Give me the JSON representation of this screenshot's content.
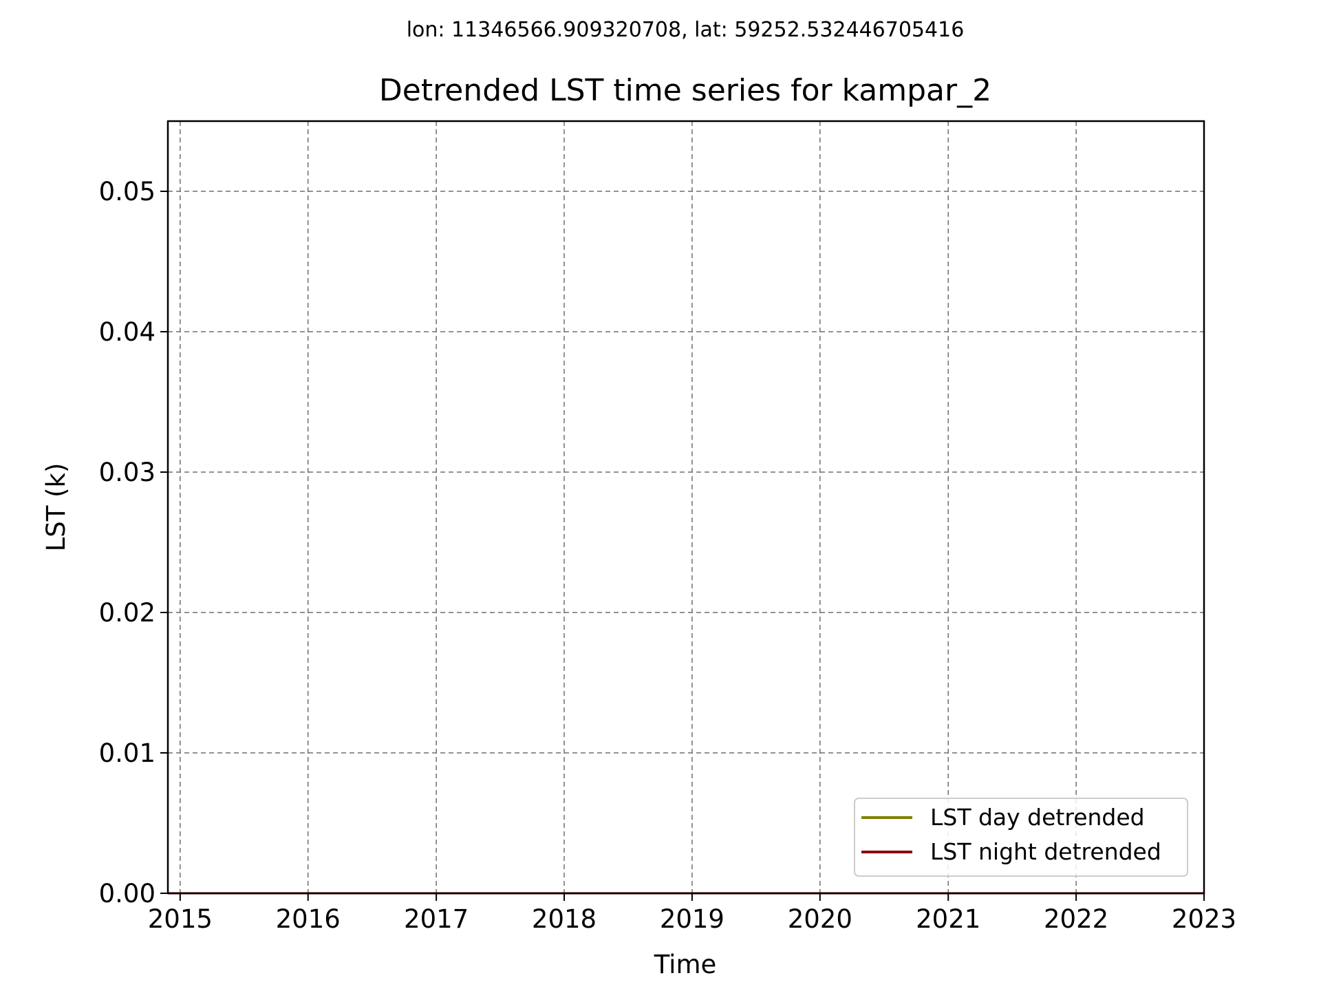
{
  "chart_data": {
    "type": "line",
    "suptitle": "lon: 11346566.909320708, lat: 59252.532446705416",
    "title": "Detrended LST time series for kampar_2",
    "xlabel": "Time",
    "ylabel": "LST (k)",
    "x_axis_type": "date",
    "xlim": [
      "2014-11-27",
      "2023-01-01"
    ],
    "ylim": [
      0,
      0.055
    ],
    "x_ticks": [
      {
        "value": "2015-01-01",
        "label": "2015"
      },
      {
        "value": "2016-01-01",
        "label": "2016"
      },
      {
        "value": "2017-01-01",
        "label": "2017"
      },
      {
        "value": "2018-01-01",
        "label": "2018"
      },
      {
        "value": "2019-01-01",
        "label": "2019"
      },
      {
        "value": "2020-01-01",
        "label": "2020"
      },
      {
        "value": "2021-01-01",
        "label": "2021"
      },
      {
        "value": "2022-01-01",
        "label": "2022"
      },
      {
        "value": "2023-01-01",
        "label": "2023"
      }
    ],
    "y_ticks": [
      {
        "value": 0.0,
        "label": "0.00"
      },
      {
        "value": 0.01,
        "label": "0.01"
      },
      {
        "value": 0.02,
        "label": "0.02"
      },
      {
        "value": 0.03,
        "label": "0.03"
      },
      {
        "value": 0.04,
        "label": "0.04"
      },
      {
        "value": 0.05,
        "label": "0.05"
      }
    ],
    "grid": true,
    "legend_position": "lower-right",
    "series": [
      {
        "name": "LST day detrended",
        "color": "#808000",
        "x": [
          "2014-11-27",
          "2023-01-01"
        ],
        "y": [
          0,
          0
        ]
      },
      {
        "name": "LST night detrended",
        "color": "#8b0000",
        "x": [
          "2014-11-27",
          "2023-01-01"
        ],
        "y": [
          0,
          0
        ]
      }
    ]
  }
}
